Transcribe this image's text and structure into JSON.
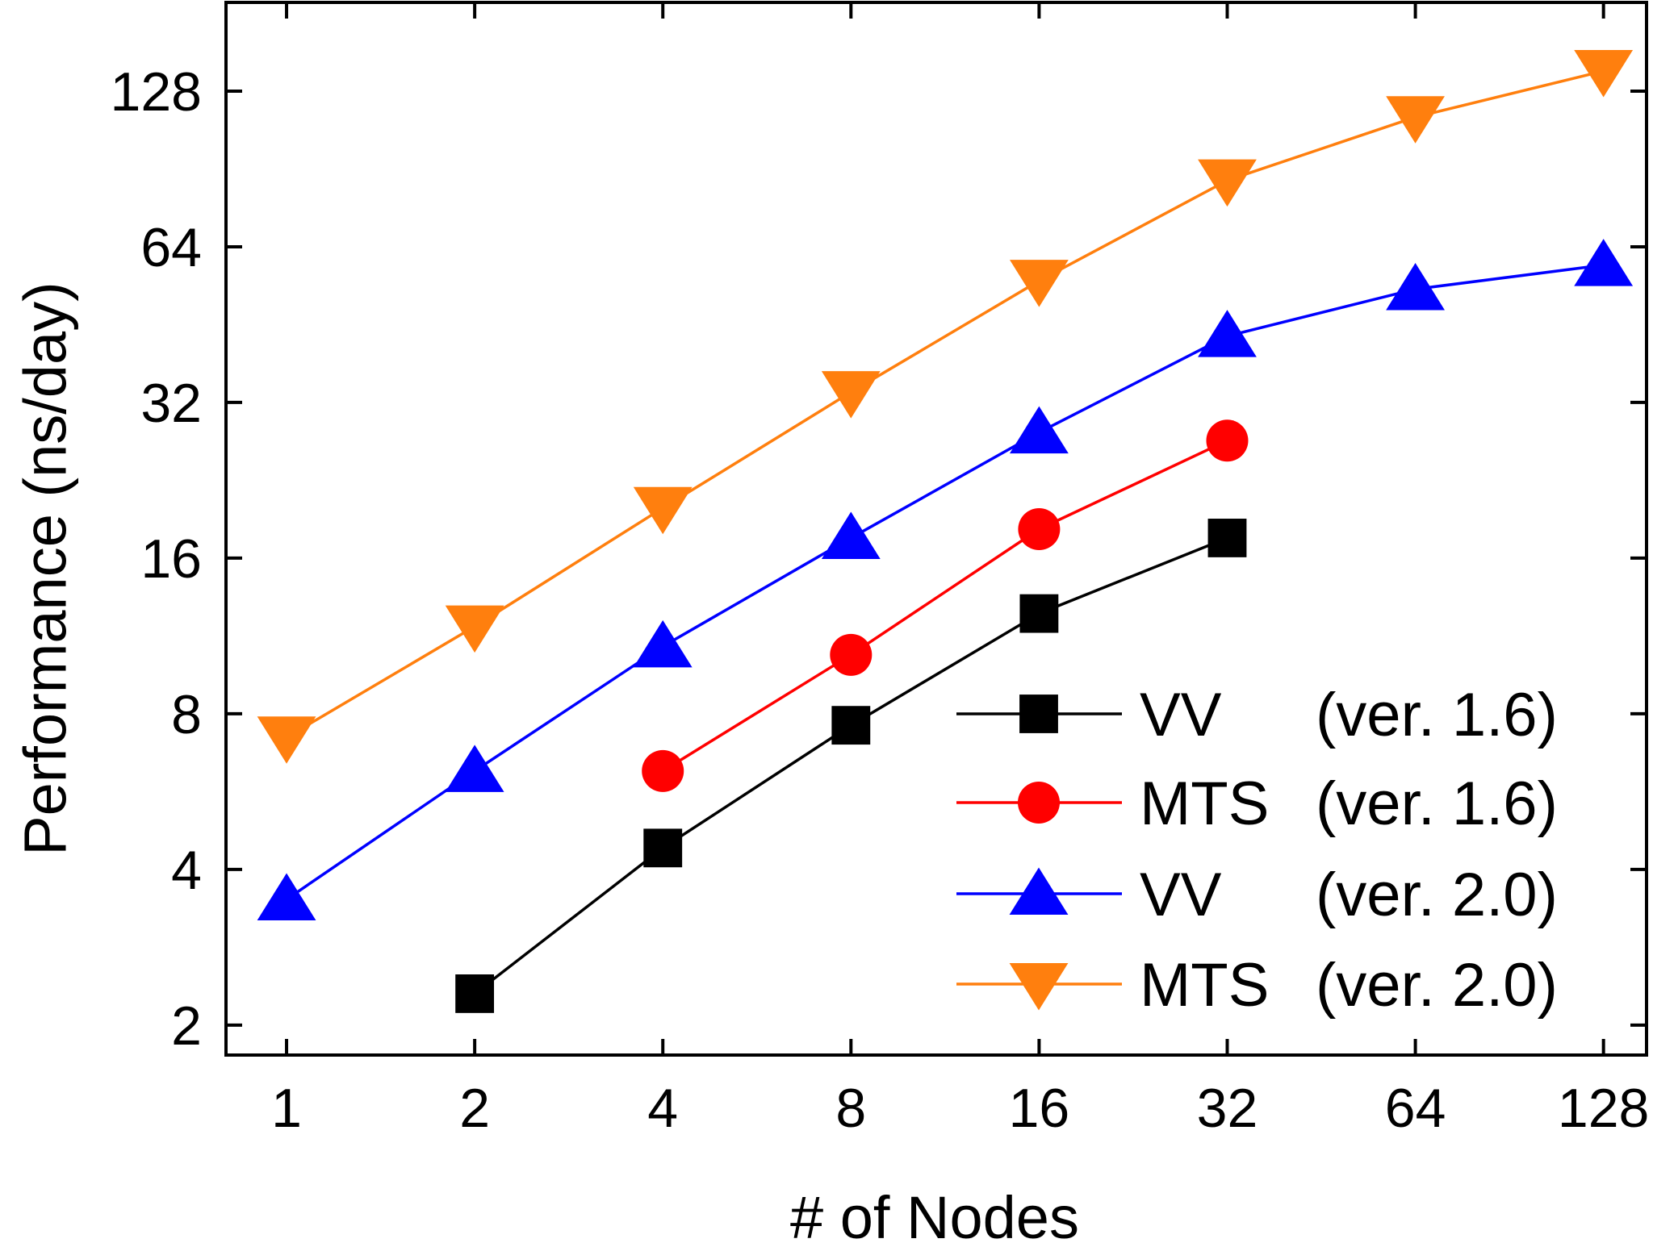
{
  "chart_data": {
    "type": "line",
    "xlabel": "# of Nodes",
    "ylabel": "Performance (ns/day)",
    "x_scale": "log2",
    "y_scale": "log2",
    "xlim": [
      0.8,
      150
    ],
    "ylim": [
      1.75,
      190
    ],
    "x_ticks": [
      1,
      2,
      4,
      8,
      16,
      32,
      64,
      128
    ],
    "x_tick_labels": [
      "1",
      "2",
      "4",
      "8",
      "16",
      "32",
      "64",
      "128"
    ],
    "y_ticks": [
      2,
      4,
      8,
      16,
      32,
      64,
      128
    ],
    "y_tick_labels": [
      "2",
      "4",
      "8",
      "16",
      "32",
      "64",
      "128"
    ],
    "grid": false,
    "legend_position": "bottom-right",
    "series": [
      {
        "name_part1": "VV",
        "name_part2": "(ver. 1.6)",
        "color": "#000000",
        "marker": "square",
        "x": [
          2,
          4,
          8,
          16,
          32
        ],
        "y": [
          2.3,
          4.4,
          7.6,
          12.5,
          17.5
        ]
      },
      {
        "name_part1": "MTS",
        "name_part2": "(ver. 1.6)",
        "color": "#ff0000",
        "marker": "circle",
        "x": [
          4,
          8,
          16,
          32
        ],
        "y": [
          6.2,
          10.4,
          18.2,
          27.0
        ]
      },
      {
        "name_part1": "VV",
        "name_part2": "(ver. 2.0)",
        "color": "#0000ff",
        "marker": "triangle-up",
        "x": [
          1,
          2,
          4,
          8,
          16,
          32,
          64,
          128
        ],
        "y": [
          3.5,
          6.2,
          10.8,
          17.5,
          28.0,
          43.0,
          53.0,
          59.0
        ]
      },
      {
        "name_part1": "MTS",
        "name_part2": "(ver. 2.0)",
        "color": "#ff7f0e",
        "marker": "triangle-down",
        "x": [
          1,
          2,
          4,
          8,
          16,
          32,
          64,
          128
        ],
        "y": [
          7.2,
          11.8,
          20.0,
          33.5,
          55.0,
          86.0,
          114.0,
          140.0
        ]
      }
    ]
  }
}
